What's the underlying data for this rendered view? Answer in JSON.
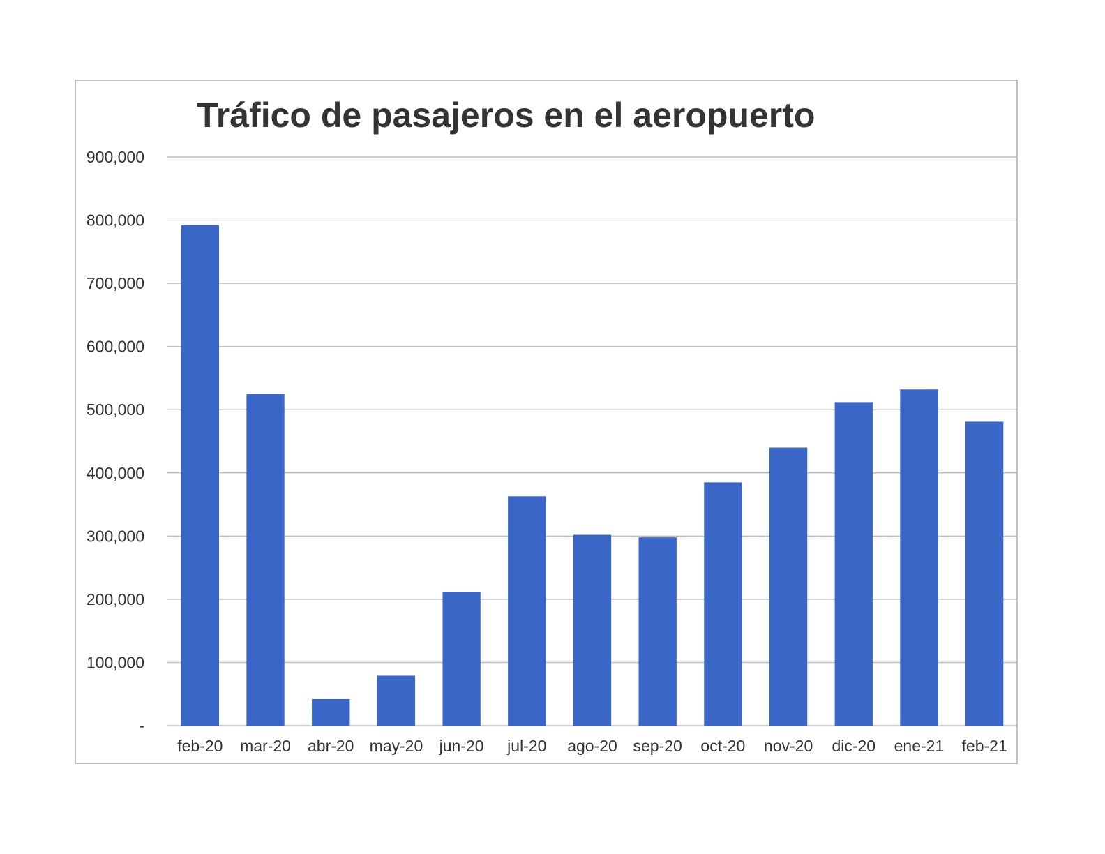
{
  "chart_data": {
    "type": "bar",
    "title": "Tráfico de pasajeros en el aeropuerto",
    "xlabel": "",
    "ylabel": "",
    "categories": [
      "feb-20",
      "mar-20",
      "abr-20",
      "may-20",
      "jun-20",
      "jul-20",
      "ago-20",
      "sep-20",
      "oct-20",
      "nov-20",
      "dic-20",
      "ene-21",
      "feb-21"
    ],
    "values": [
      792000,
      525000,
      42000,
      79000,
      212000,
      363000,
      302000,
      298000,
      385000,
      440000,
      512000,
      532000,
      481000
    ],
    "ylim": [
      0,
      900000
    ],
    "yticks": [
      0,
      100000,
      200000,
      300000,
      400000,
      500000,
      600000,
      700000,
      800000,
      900000
    ],
    "ytick_labels": [
      "-",
      "100,000",
      "200,000",
      "300,000",
      "400,000",
      "500,000",
      "600,000",
      "700,000",
      "800,000",
      "900,000"
    ],
    "grid": true,
    "legend": "none",
    "bar_color": "#3a66c8",
    "grid_color": "#bfbfbf"
  }
}
